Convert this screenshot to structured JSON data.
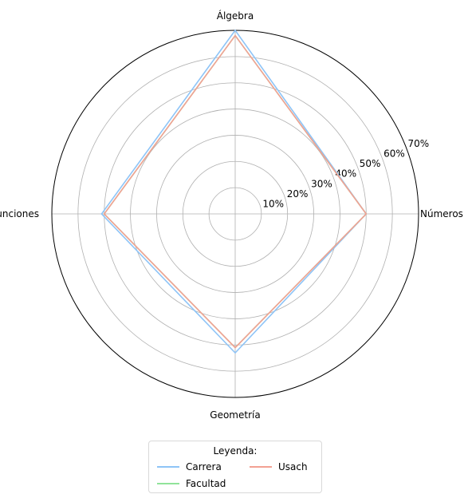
{
  "chart_data": {
    "type": "radar",
    "axes": [
      "Números",
      "Álgebra",
      "Funciones",
      "Geometría"
    ],
    "radial_ticks": [
      "10%",
      "20%",
      "30%",
      "40%",
      "50%",
      "60%",
      "70%"
    ],
    "radial_range": [
      0,
      70
    ],
    "grid": true,
    "legend_title": "Leyenda:",
    "legend_position": "bottom-center",
    "series": [
      {
        "name": "Carrera",
        "color": "#8ec4f7",
        "values": [
          50,
          70,
          51,
          53
        ]
      },
      {
        "name": "Facultad",
        "color": "#90e39a",
        "values": [
          50,
          68,
          50,
          51
        ]
      },
      {
        "name": "Usach",
        "color": "#f2a193",
        "values": [
          50,
          68,
          50,
          51
        ]
      }
    ]
  }
}
